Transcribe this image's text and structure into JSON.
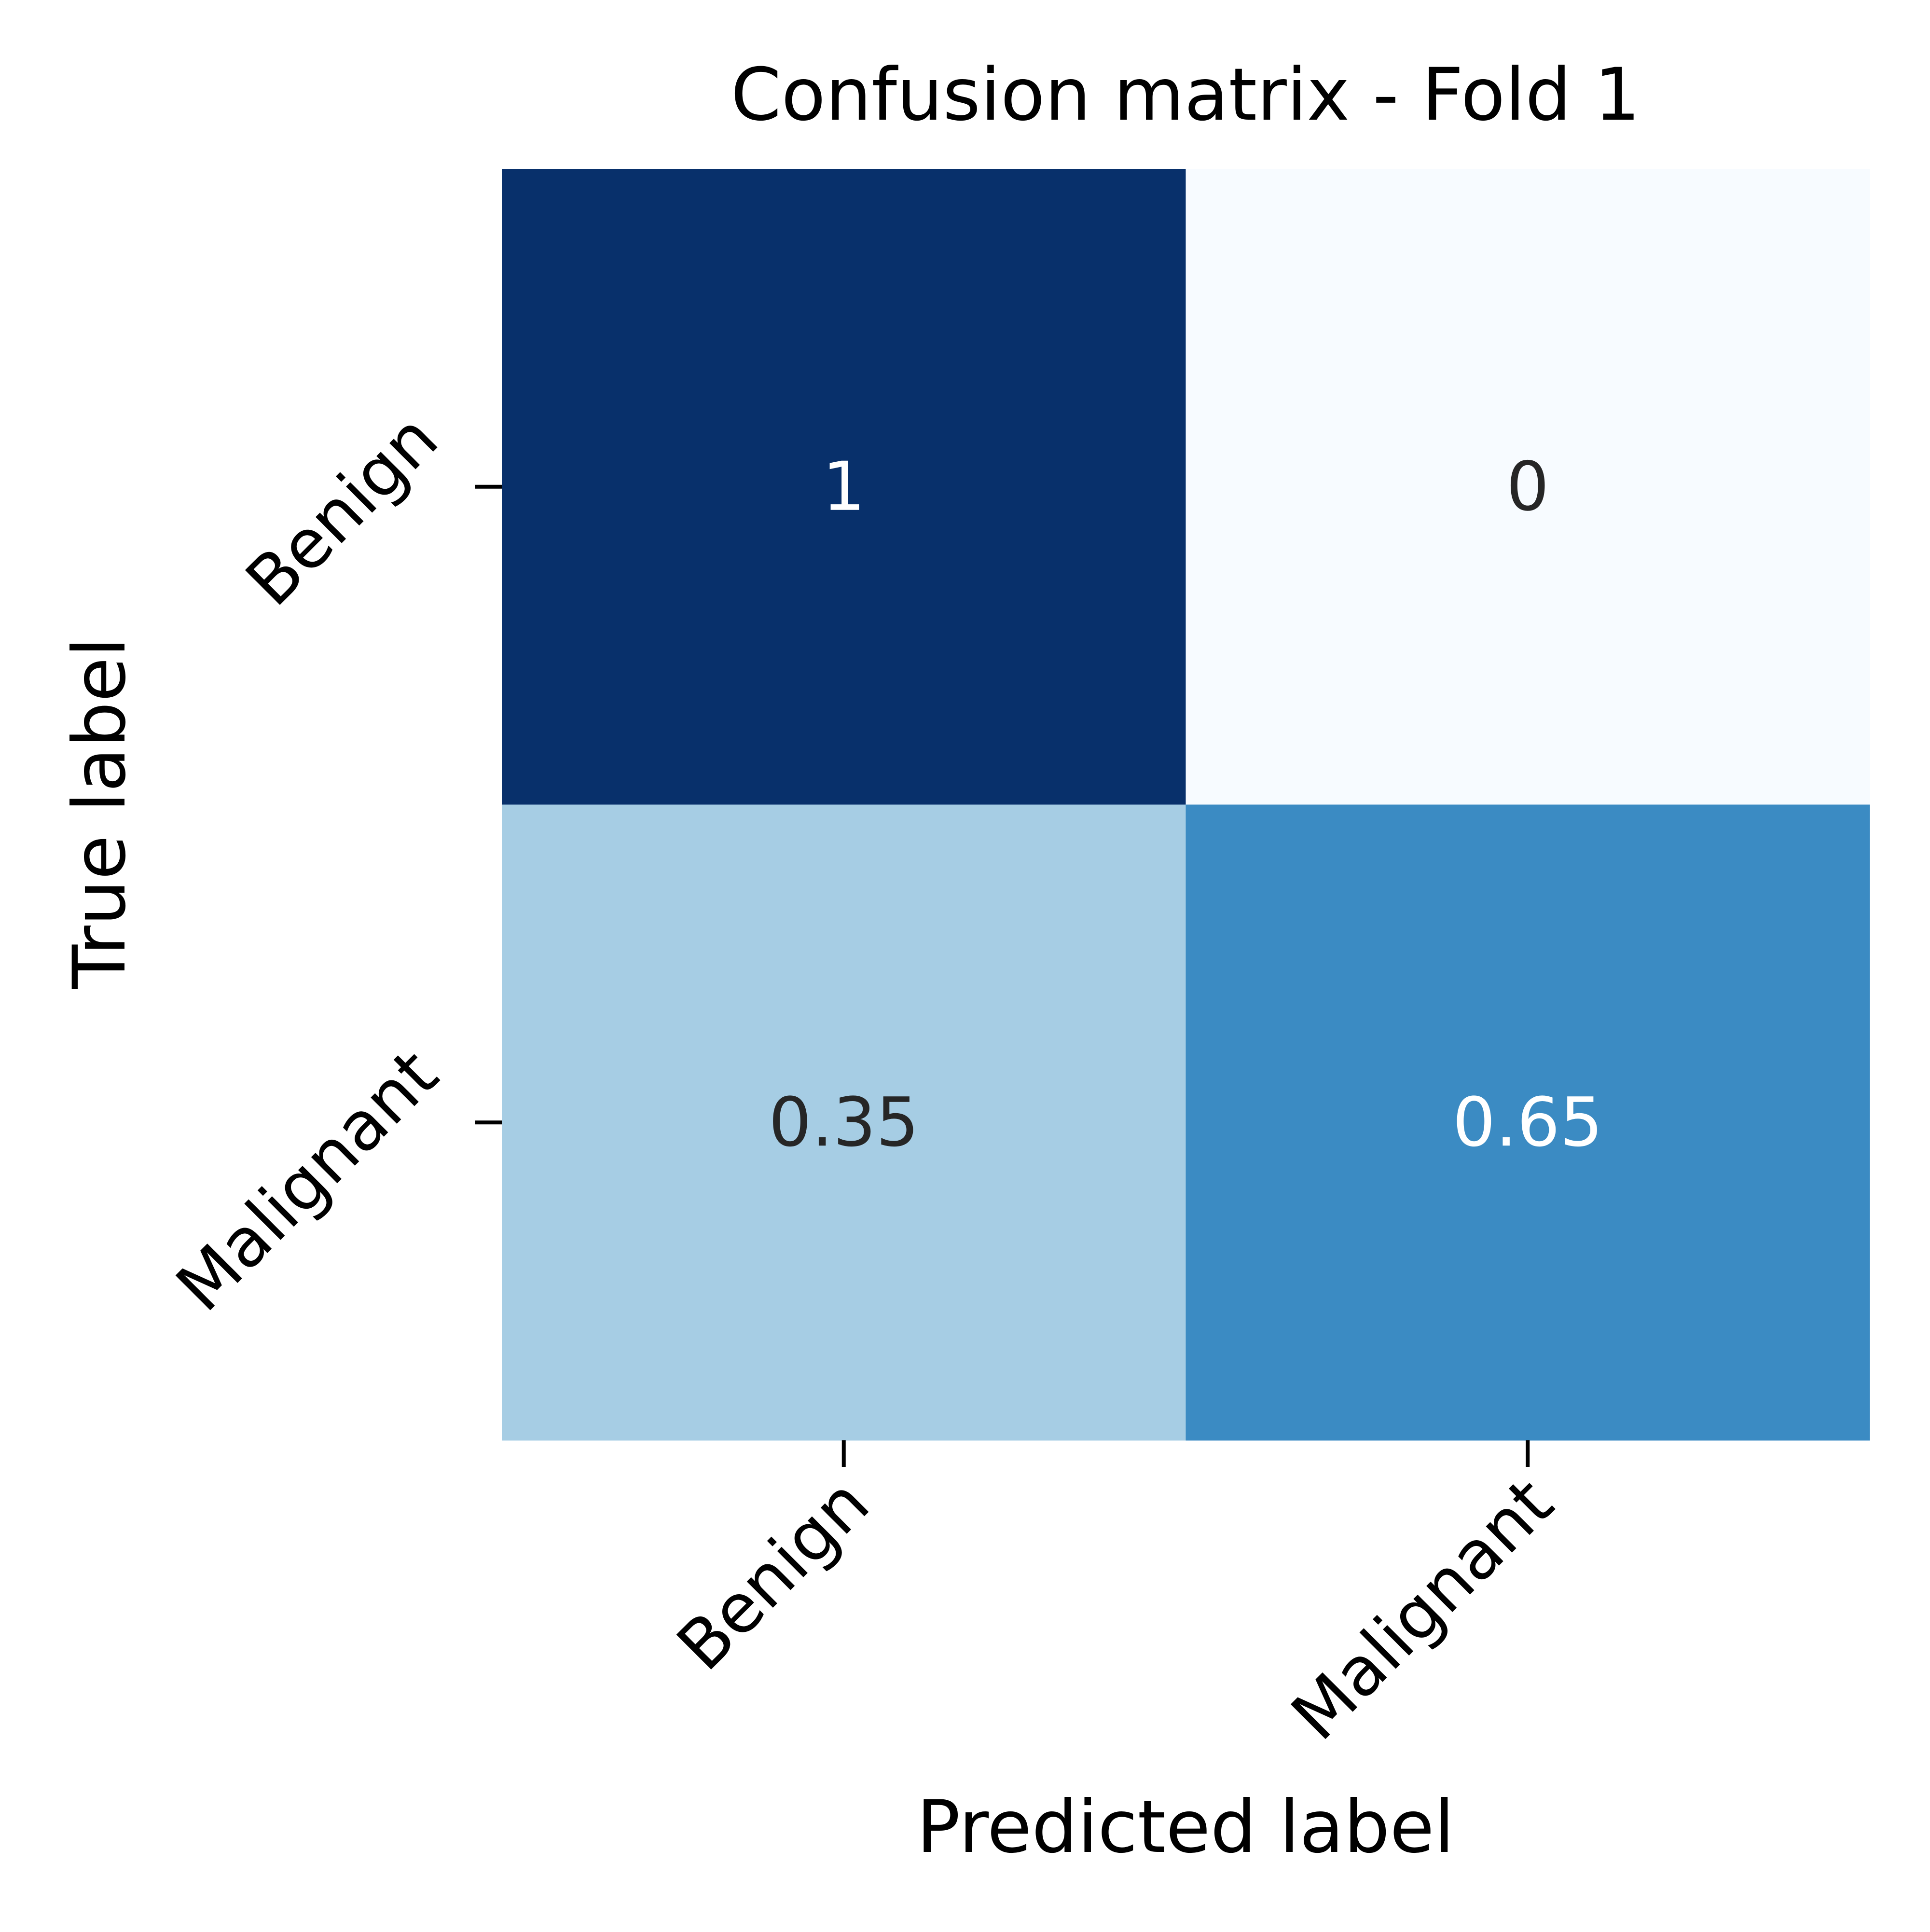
{
  "chart_data": {
    "type": "heatmap",
    "title": "Confusion matrix - Fold 1",
    "xlabel": "Predicted label",
    "ylabel": "True label",
    "x_categories": [
      "Benign",
      "Malignant"
    ],
    "y_categories": [
      "Benign",
      "Malignant"
    ],
    "values": [
      [
        1,
        0
      ],
      [
        0.35,
        0.65
      ]
    ],
    "cell_labels": [
      [
        "1",
        "0"
      ],
      [
        "0.35",
        "0.65"
      ]
    ],
    "colormap": "Blues",
    "value_range": [
      0,
      1
    ],
    "grid": false,
    "colors": {
      "min": "#f7fbff",
      "max": "#08306b",
      "text_dark": "#262626",
      "text_light": "#ffffff",
      "axis": "#000000"
    }
  }
}
